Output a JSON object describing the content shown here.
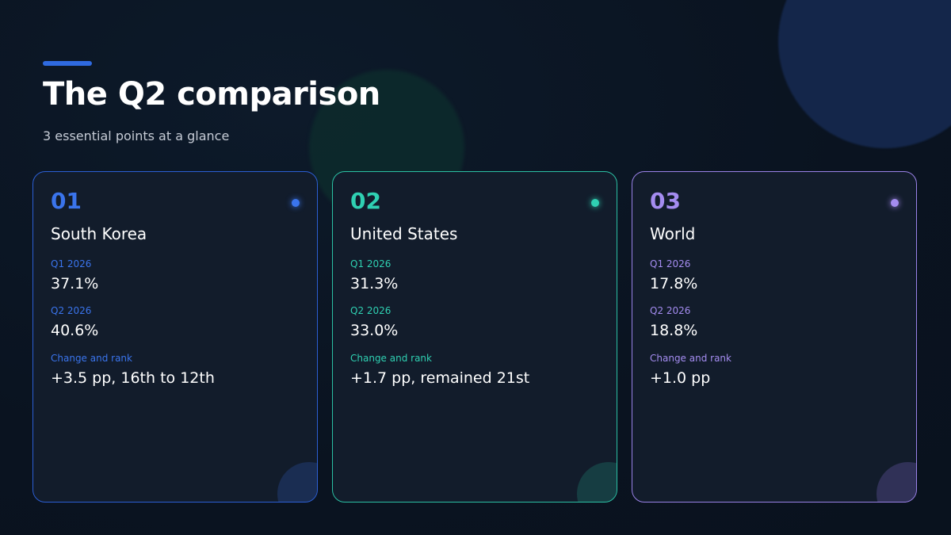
{
  "header": {
    "title": "The Q2 comparison",
    "subtitle": "3 essential points at a glance"
  },
  "colors": {
    "card_1_accent": "#3a74ec",
    "card_2_accent": "#2fd0b2",
    "card_3_accent": "#a48cf0",
    "background": "#0a1320"
  },
  "cards": [
    {
      "number": "01",
      "region": "South Korea",
      "q1_label": "Q1 2026",
      "q1_value": "37.1%",
      "q2_label": "Q2 2026",
      "q2_value": "40.6%",
      "change_label": "Change and rank",
      "change_value": "+3.5 pp, 16th to 12th"
    },
    {
      "number": "02",
      "region": "United States",
      "q1_label": "Q1 2026",
      "q1_value": "31.3%",
      "q2_label": "Q2 2026",
      "q2_value": "33.0%",
      "change_label": "Change and rank",
      "change_value": "+1.7 pp, remained 21st"
    },
    {
      "number": "03",
      "region": "World",
      "q1_label": "Q1 2026",
      "q1_value": "17.8%",
      "q2_label": "Q2 2026",
      "q2_value": "18.8%",
      "change_label": "Change and rank",
      "change_value": "+1.0 pp"
    }
  ]
}
